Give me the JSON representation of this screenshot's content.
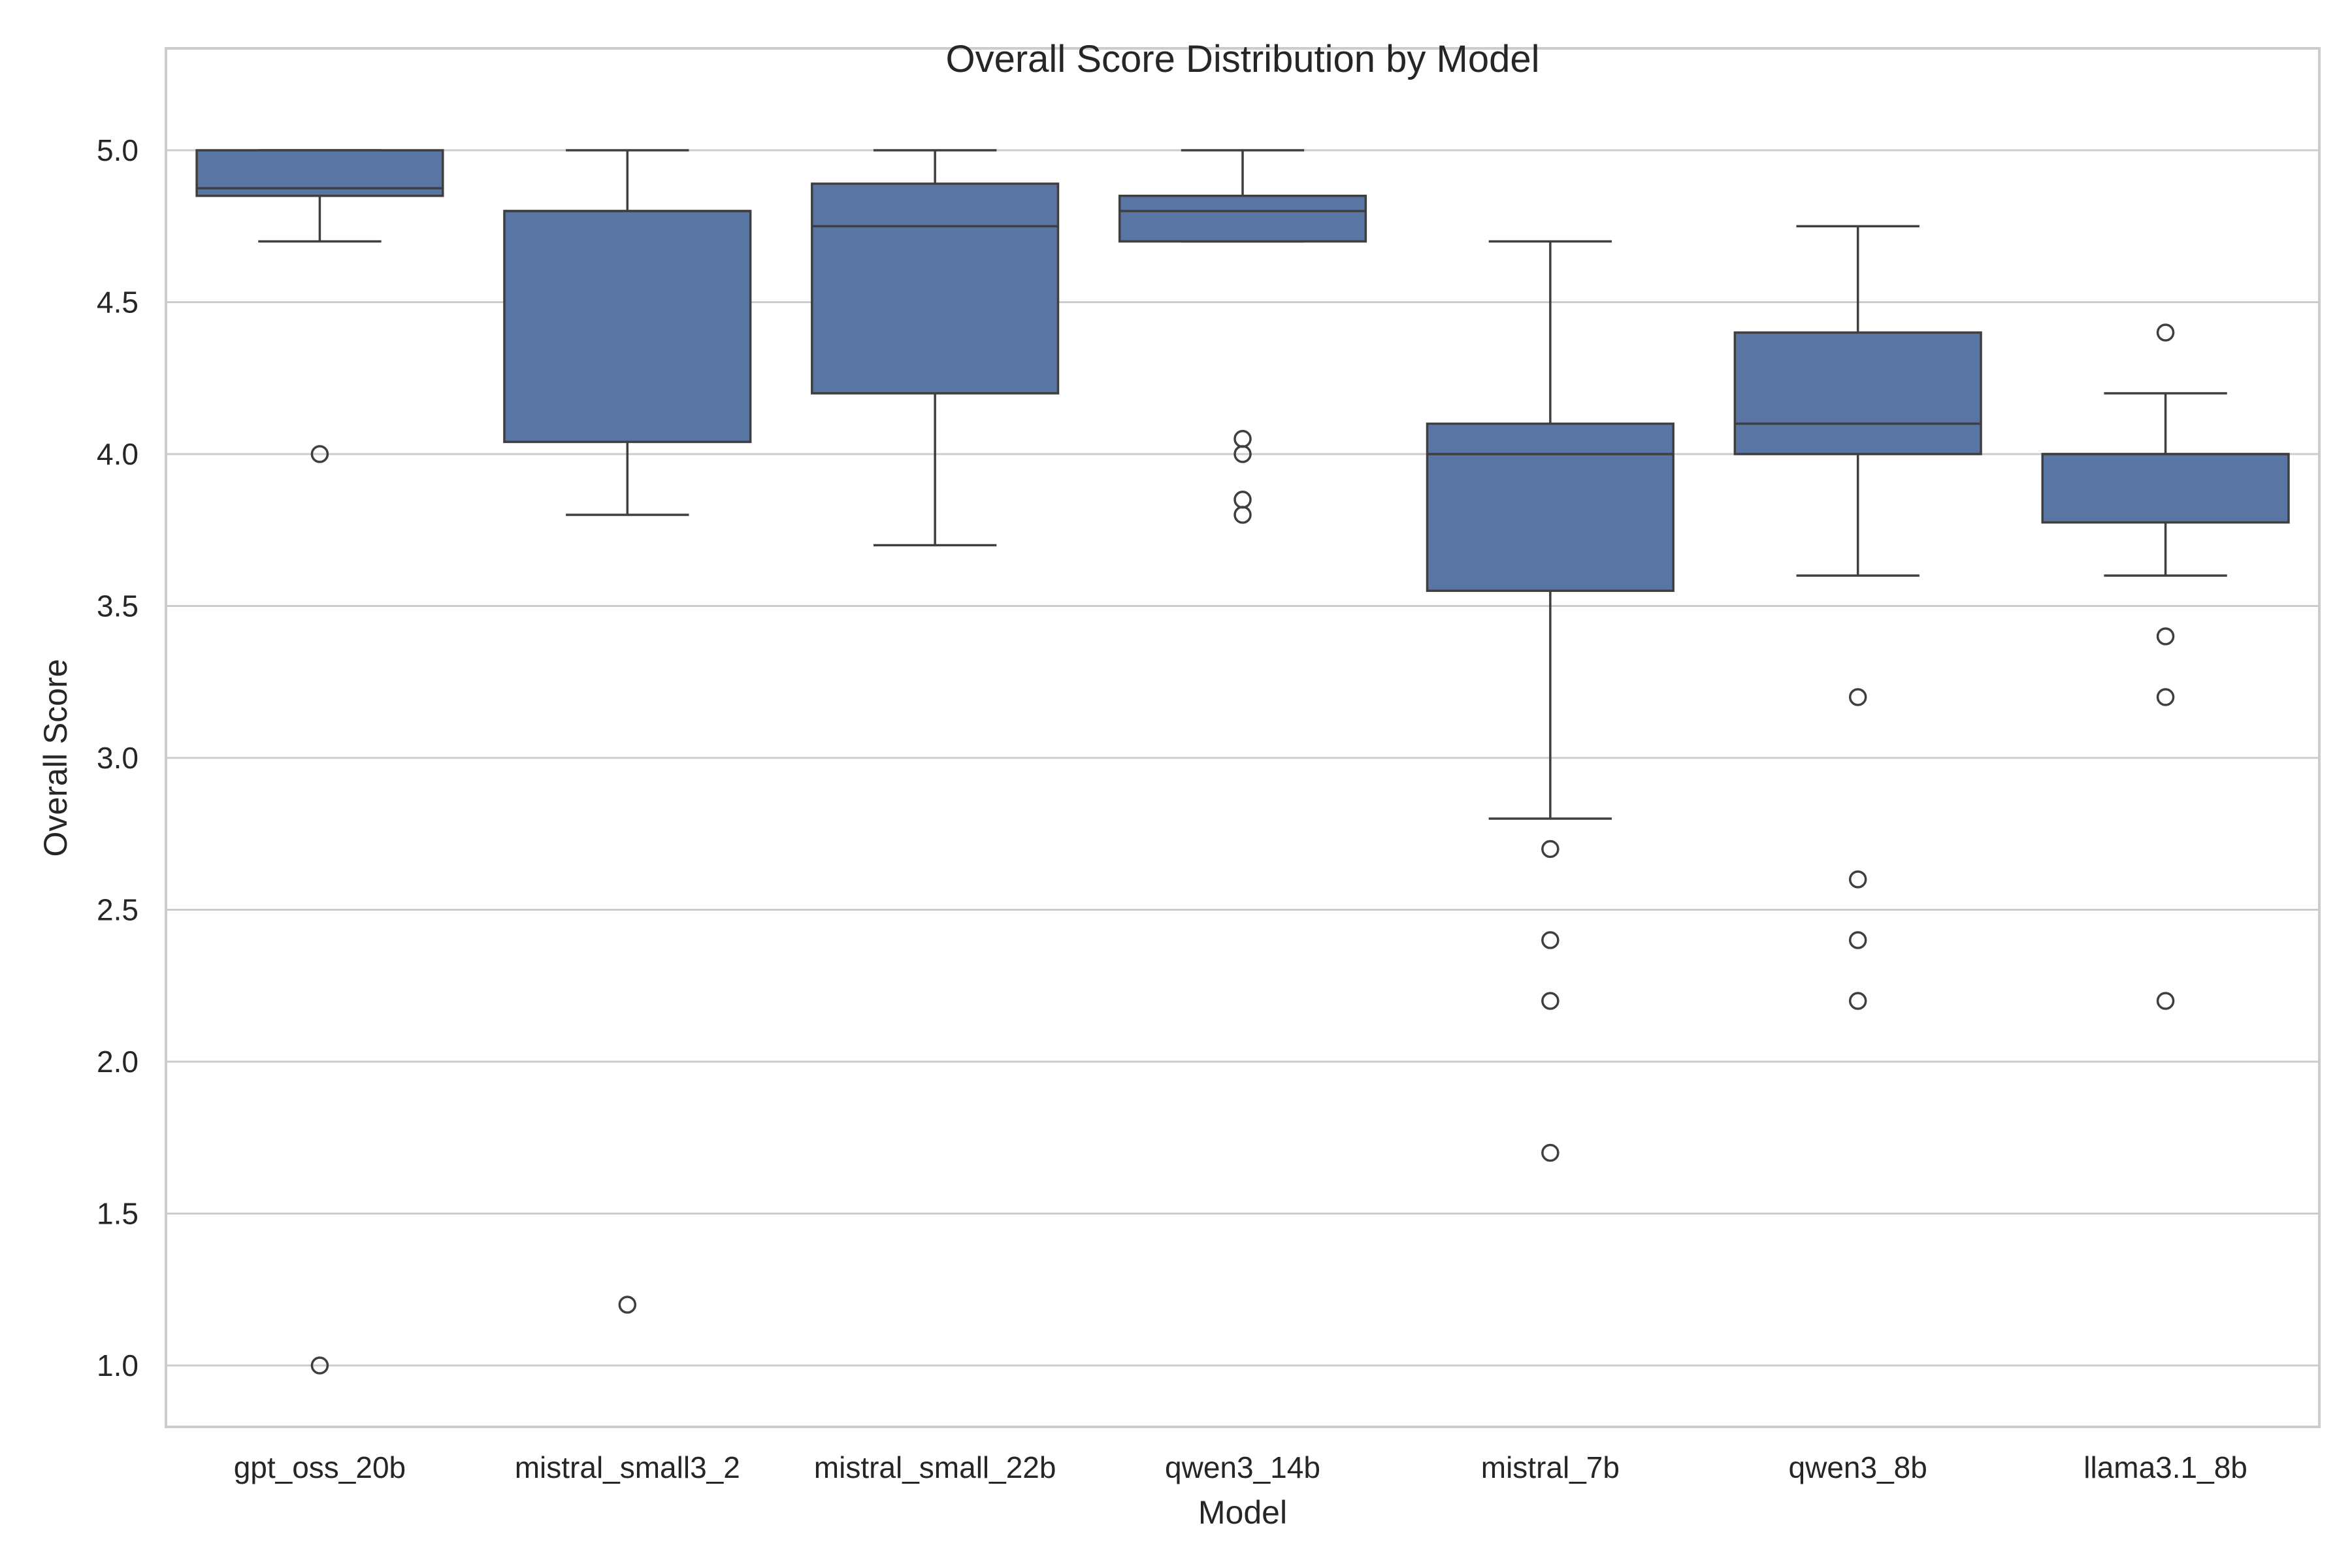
{
  "chart_data": {
    "type": "box",
    "title": "Overall Score Distribution by Model",
    "xlabel": "Model",
    "ylabel": "Overall Score",
    "ylim": [
      0.8,
      5.15
    ],
    "yticks": [
      "1.0",
      "1.5",
      "2.0",
      "2.5",
      "3.0",
      "3.5",
      "4.0",
      "4.5",
      "5.0"
    ],
    "grid": "horizontal",
    "box_color": "#5875a4",
    "line_color": "#3f3f3f",
    "categories": [
      "gpt_oss_20b",
      "mistral_small3_2",
      "mistral_small_22b",
      "qwen3_14b",
      "mistral_7b",
      "qwen3_8b",
      "llama3.1_8b"
    ],
    "boxes": [
      {
        "category": "gpt_oss_20b",
        "whisker_low": 4.7,
        "q1": 4.85,
        "median": 4.875,
        "q3": 5.0,
        "whisker_high": 5.0,
        "outliers": [
          4.0,
          1.0
        ]
      },
      {
        "category": "mistral_small3_2",
        "whisker_low": 3.8,
        "q1": 4.04,
        "median": 4.8,
        "q3": 4.8,
        "whisker_high": 5.0,
        "outliers": [
          1.2
        ]
      },
      {
        "category": "mistral_small_22b",
        "whisker_low": 3.7,
        "q1": 4.2,
        "median": 4.75,
        "q3": 4.89,
        "whisker_high": 5.0,
        "outliers": []
      },
      {
        "category": "qwen3_14b",
        "whisker_low": 4.7,
        "q1": 4.7,
        "median": 4.8,
        "q3": 4.85,
        "whisker_high": 5.0,
        "outliers": [
          4.05,
          4.0,
          3.85,
          3.8
        ]
      },
      {
        "category": "mistral_7b",
        "whisker_low": 2.8,
        "q1": 3.55,
        "median": 4.0,
        "q3": 4.1,
        "whisker_high": 4.7,
        "outliers": [
          2.7,
          2.4,
          2.2,
          1.7
        ]
      },
      {
        "category": "qwen3_8b",
        "whisker_low": 3.6,
        "q1": 4.0,
        "median": 4.1,
        "q3": 4.4,
        "whisker_high": 4.75,
        "outliers": [
          3.2,
          2.6,
          2.4,
          2.2
        ]
      },
      {
        "category": "llama3.1_8b",
        "whisker_low": 3.6,
        "q1": 3.775,
        "median": 4.0,
        "q3": 4.0,
        "whisker_high": 4.2,
        "outliers": [
          4.4,
          3.4,
          3.2,
          2.2
        ]
      }
    ]
  }
}
